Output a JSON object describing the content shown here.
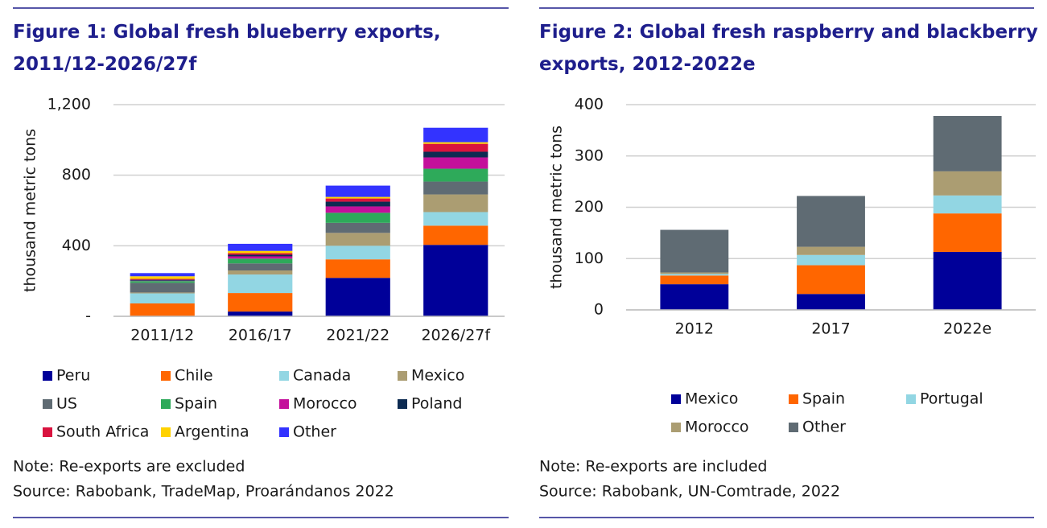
{
  "chart_data": [
    {
      "type": "bar",
      "stacked": true,
      "title": "Figure 1: Global fresh blueberry exports, 2011/12-2026/27f",
      "y_label": "thousand metric tons",
      "categories": [
        "2011/12",
        "2016/17",
        "2021/22",
        "2026/27f"
      ],
      "ylim": [
        0,
        1200
      ],
      "yticks": [
        {
          "value": 0,
          "label": "-"
        },
        400,
        800,
        {
          "value": 1200,
          "label": "1,200"
        }
      ],
      "grid": true,
      "series": [
        {
          "name": "Peru",
          "color": "#000099",
          "values": [
            0,
            27,
            218,
            405
          ]
        },
        {
          "name": "Chile",
          "color": "#ff6600",
          "values": [
            73,
            105,
            105,
            109
          ]
        },
        {
          "name": "Canada",
          "color": "#92d6e3",
          "values": [
            57,
            105,
            77,
            77
          ]
        },
        {
          "name": "Mexico",
          "color": "#ab9d72",
          "values": [
            5,
            23,
            73,
            100
          ]
        },
        {
          "name": "US",
          "color": "#5f6b73",
          "values": [
            55,
            40,
            57,
            73
          ]
        },
        {
          "name": "Spain",
          "color": "#2eaa5a",
          "values": [
            10,
            27,
            57,
            73
          ]
        },
        {
          "name": "Morocco",
          "color": "#c4109b",
          "values": [
            2,
            13,
            36,
            64
          ]
        },
        {
          "name": "Poland",
          "color": "#0d2b52",
          "values": [
            5,
            9,
            27,
            32
          ]
        },
        {
          "name": "South Africa",
          "color": "#d9133f",
          "values": [
            5,
            9,
            18,
            45
          ]
        },
        {
          "name": "Argentina",
          "color": "#ffd200",
          "values": [
            15,
            13,
            9,
            9
          ]
        },
        {
          "name": "Other",
          "color": "#3333ff",
          "values": [
            18,
            40,
            64,
            82
          ]
        }
      ],
      "note": "Note: Re-exports are excluded",
      "source": "Source: Rabobank, TradeMap, Proarándanos 2022"
    },
    {
      "type": "bar",
      "stacked": true,
      "title": "Figure 2: Global fresh raspberry and blackberry exports, 2012-2022e",
      "y_label": "thousand metric tons",
      "categories": [
        "2012",
        "2017",
        "2022e"
      ],
      "ylim": [
        0,
        400
      ],
      "yticks": [
        0,
        100,
        200,
        300,
        400
      ],
      "grid": true,
      "series": [
        {
          "name": "Mexico",
          "color": "#000099",
          "values": [
            50,
            31,
            113
          ]
        },
        {
          "name": "Spain",
          "color": "#ff6600",
          "values": [
            17,
            56,
            75
          ]
        },
        {
          "name": "Portugal",
          "color": "#92d6e3",
          "values": [
            3,
            20,
            35
          ]
        },
        {
          "name": "Morocco",
          "color": "#ab9d72",
          "values": [
            3,
            16,
            47
          ]
        },
        {
          "name": "Other",
          "color": "#5f6b73",
          "values": [
            83,
            99,
            108
          ]
        }
      ],
      "note": "Note: Re-exports are included",
      "source": "Source: Rabobank, UN-Comtrade, 2022"
    }
  ]
}
